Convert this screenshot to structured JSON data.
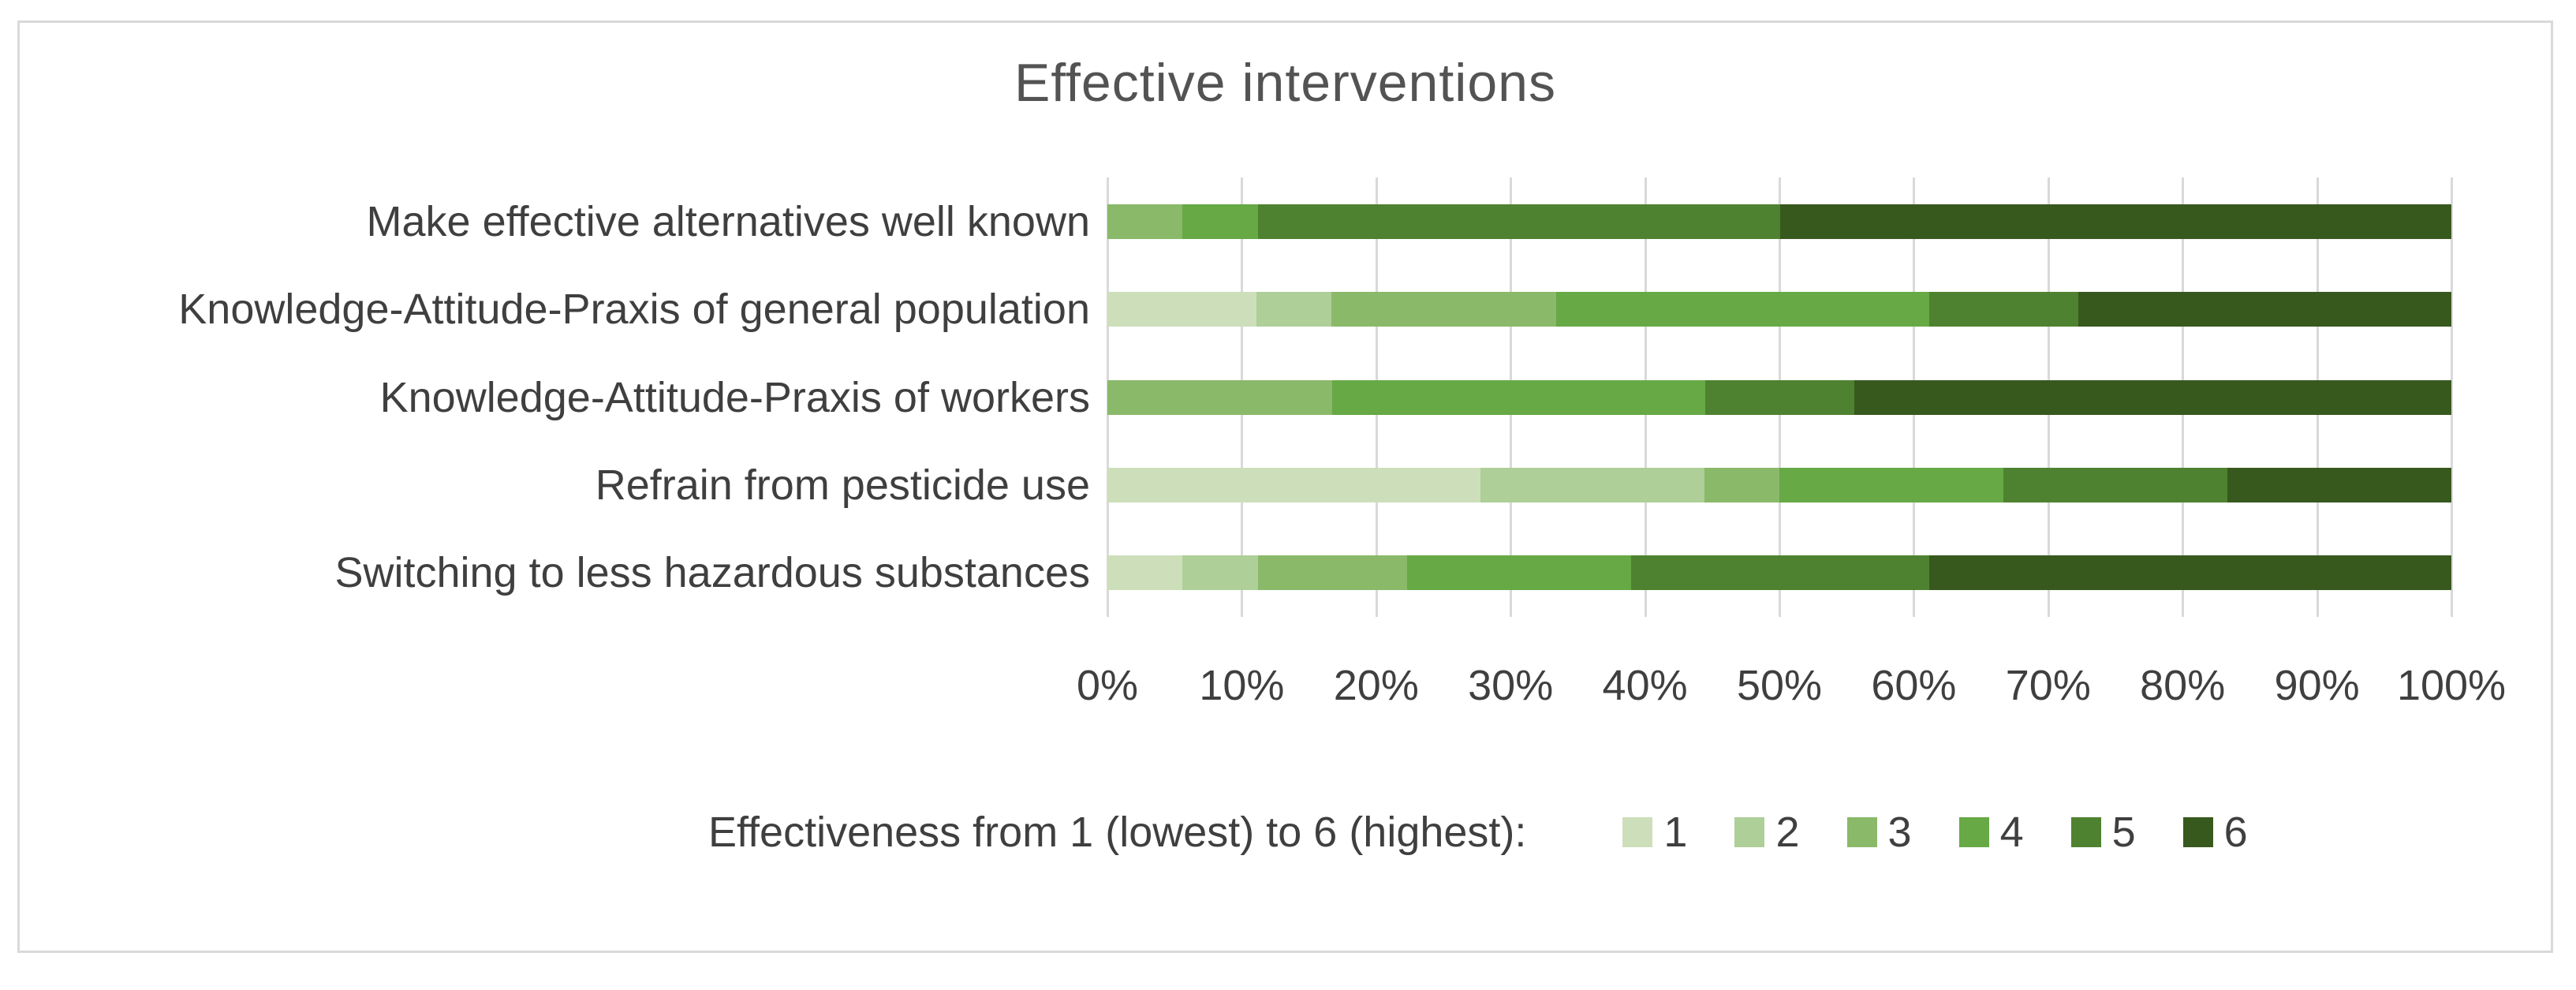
{
  "title": "Effective interventions",
  "legend_label": "Effectiveness from 1 (lowest) to 6 (highest):",
  "chart_data": {
    "type": "bar",
    "variant": "horizontal-100pct-stacked",
    "title": "Effective interventions",
    "categories": [
      "Make effective alternatives well known",
      "Knowledge-Attitude-Praxis of general population",
      "Knowledge-Attitude-Praxis of workers",
      "Refrain from pesticide use",
      "Switching to less hazardous substances"
    ],
    "series": [
      {
        "name": "1",
        "color": "#cddfba",
        "values": [
          0,
          11.1,
          0,
          27.8,
          5.6
        ]
      },
      {
        "name": "2",
        "color": "#aecf98",
        "values": [
          0,
          5.6,
          0,
          16.7,
          5.6
        ]
      },
      {
        "name": "3",
        "color": "#8ab96a",
        "values": [
          5.6,
          16.7,
          16.7,
          5.6,
          11.1
        ]
      },
      {
        "name": "4",
        "color": "#66a945",
        "values": [
          5.6,
          27.8,
          27.8,
          16.7,
          16.7
        ]
      },
      {
        "name": "5",
        "color": "#4e8230",
        "values": [
          38.9,
          11.1,
          11.1,
          16.7,
          22.2
        ]
      },
      {
        "name": "6",
        "color": "#38591e",
        "values": [
          50.0,
          27.8,
          44.4,
          16.7,
          38.9
        ]
      }
    ],
    "x_tick_labels": [
      "0%",
      "10%",
      "20%",
      "30%",
      "40%",
      "50%",
      "60%",
      "70%",
      "80%",
      "90%",
      "100%"
    ],
    "xlim": [
      0,
      100
    ],
    "grid": "vertical-only",
    "gridline_color": "#d9d9d9",
    "legend_position": "bottom",
    "legend_title": "Effectiveness from 1 (lowest) to 6 (highest):"
  }
}
